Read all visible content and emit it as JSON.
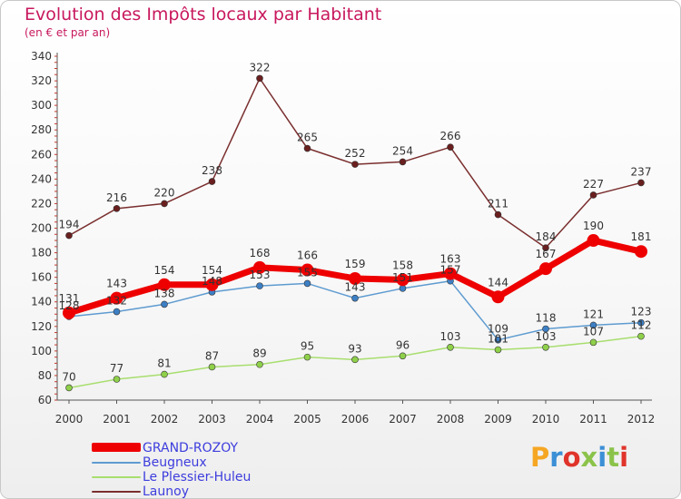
{
  "title": "Evolution des Impôts locaux par Habitant",
  "subtitle": "(en € et par an)",
  "logo": "Proxiti",
  "logo_colors": [
    "#f5a623",
    "#3b8fd6",
    "#e0342b",
    "#8bc34a",
    "#3b8fd6",
    "#8bc34a",
    "#e0342b"
  ],
  "chart_data": {
    "type": "line",
    "title": "Evolution des Impôts locaux par Habitant",
    "subtitle": "(en € et par an)",
    "xlabel": "",
    "ylabel": "",
    "x": [
      "2000",
      "2001",
      "2002",
      "2003",
      "2004",
      "2005",
      "2006",
      "2007",
      "2008",
      "2009",
      "2010",
      "2011",
      "2012"
    ],
    "ylim": [
      60,
      340
    ],
    "yticks": [
      60,
      80,
      100,
      120,
      140,
      160,
      180,
      200,
      220,
      240,
      260,
      280,
      300,
      320,
      340
    ],
    "grid": false,
    "legend_position": "bottom-left",
    "series": [
      {
        "name": "GRAND-ROZOY",
        "color": "#ee0000",
        "values": [
          131,
          143,
          154,
          154,
          168,
          166,
          159,
          158,
          163,
          144,
          167,
          190,
          181
        ]
      },
      {
        "name": "Beugneux",
        "color": "#5e9bd0",
        "values": [
          128,
          132,
          138,
          148,
          153,
          155,
          143,
          151,
          157,
          109,
          118,
          121,
          123
        ]
      },
      {
        "name": "Le Plessier-Huleu",
        "color": "#a8de6e",
        "values": [
          70,
          77,
          81,
          87,
          89,
          95,
          93,
          96,
          103,
          101,
          103,
          107,
          112
        ]
      },
      {
        "name": "Launoy",
        "color": "#7a2e2e",
        "values": [
          194,
          216,
          220,
          238,
          322,
          265,
          252,
          254,
          266,
          211,
          184,
          227,
          237
        ]
      }
    ]
  }
}
